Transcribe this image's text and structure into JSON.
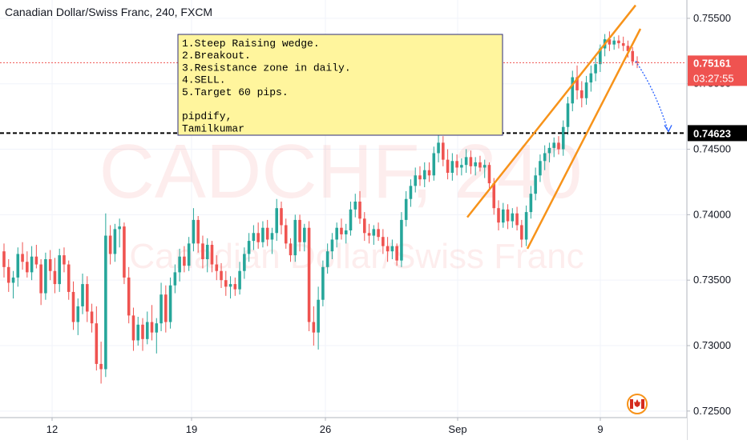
{
  "header": {
    "title": "Canadian Dollar/Swiss Franc, 240, FXCM"
  },
  "watermark": {
    "symbol": "CADCHF, 240",
    "name": "Canadian Dollar/Swiss Franc"
  },
  "annotation": {
    "lines": [
      "1.Steep Raising wedge.",
      "2.Breakout.",
      "3.Resistance zone in daily.",
      "4.SELL.",
      "5.Target 60 pips.",
      "",
      "pipdify,",
      "Tamilkumar"
    ]
  },
  "colors": {
    "up": "#26a69a",
    "down": "#ef5350",
    "wedge": "#f7931a",
    "annotation_bg": "#fff59d",
    "annotation_border": "#2d2d7a",
    "price_badge": "#ef5350",
    "level_badge": "#000000",
    "projection": "#2962ff"
  },
  "chart_data": {
    "type": "candlestick",
    "symbol": "CADCHF",
    "timeframe": "240",
    "ylim": [
      0.7245,
      0.7564
    ],
    "y_ticks": [
      "0.75500",
      "0.75000",
      "0.74500",
      "0.74000",
      "0.73500",
      "0.73000",
      "0.72500"
    ],
    "x_ticks": [
      "12",
      "19",
      "26",
      "Sep",
      "9"
    ],
    "current_price": "0.75161",
    "countdown": "03:27:55",
    "target_level": "0.74623",
    "levels": {
      "current_price": 0.75161,
      "target_level": 0.74623
    },
    "candles_ohlc": [
      [
        0.7372,
        0.7378,
        0.7352,
        0.736
      ],
      [
        0.736,
        0.7366,
        0.7341,
        0.7348
      ],
      [
        0.7348,
        0.7357,
        0.7336,
        0.7352
      ],
      [
        0.7352,
        0.7375,
        0.7345,
        0.737
      ],
      [
        0.737,
        0.7379,
        0.7358,
        0.7364
      ],
      [
        0.7364,
        0.7372,
        0.7352,
        0.7356
      ],
      [
        0.7356,
        0.7376,
        0.735,
        0.7368
      ],
      [
        0.7368,
        0.7377,
        0.7359,
        0.7362
      ],
      [
        0.7362,
        0.7366,
        0.7331,
        0.734
      ],
      [
        0.734,
        0.7371,
        0.7335,
        0.7366
      ],
      [
        0.7366,
        0.7373,
        0.735,
        0.7357
      ],
      [
        0.7357,
        0.7367,
        0.734,
        0.7347
      ],
      [
        0.7347,
        0.7374,
        0.7341,
        0.7369
      ],
      [
        0.7369,
        0.7375,
        0.7356,
        0.7362
      ],
      [
        0.7362,
        0.7365,
        0.7335,
        0.7341
      ],
      [
        0.7341,
        0.7349,
        0.7312,
        0.7318
      ],
      [
        0.7318,
        0.7336,
        0.7308,
        0.733
      ],
      [
        0.733,
        0.7355,
        0.7324,
        0.7347
      ],
      [
        0.7347,
        0.7353,
        0.7318,
        0.7326
      ],
      [
        0.7326,
        0.7332,
        0.731,
        0.7317
      ],
      [
        0.7317,
        0.733,
        0.7281,
        0.7286
      ],
      [
        0.7286,
        0.7303,
        0.7271,
        0.7282
      ],
      [
        0.7282,
        0.7401,
        0.7276,
        0.7384
      ],
      [
        0.7384,
        0.7392,
        0.7362,
        0.737
      ],
      [
        0.737,
        0.7393,
        0.7364,
        0.7389
      ],
      [
        0.7389,
        0.7397,
        0.7375,
        0.7391
      ],
      [
        0.7391,
        0.7394,
        0.7347,
        0.7352
      ],
      [
        0.7352,
        0.736,
        0.7317,
        0.7323
      ],
      [
        0.7323,
        0.7329,
        0.7296,
        0.7304
      ],
      [
        0.7304,
        0.7322,
        0.73,
        0.7316
      ],
      [
        0.7316,
        0.7321,
        0.7296,
        0.7305
      ],
      [
        0.7305,
        0.7326,
        0.7301,
        0.7318
      ],
      [
        0.7318,
        0.7331,
        0.7304,
        0.731
      ],
      [
        0.731,
        0.7321,
        0.7294,
        0.7317
      ],
      [
        0.7317,
        0.7348,
        0.7311,
        0.7339
      ],
      [
        0.7339,
        0.7346,
        0.731,
        0.7318
      ],
      [
        0.7318,
        0.7352,
        0.7313,
        0.7346
      ],
      [
        0.7346,
        0.7362,
        0.734,
        0.7356
      ],
      [
        0.7356,
        0.7374,
        0.7349,
        0.7368
      ],
      [
        0.7368,
        0.7376,
        0.7356,
        0.7361
      ],
      [
        0.7361,
        0.7383,
        0.7357,
        0.7378
      ],
      [
        0.7378,
        0.7405,
        0.7372,
        0.7396
      ],
      [
        0.7396,
        0.7399,
        0.7371,
        0.7378
      ],
      [
        0.7378,
        0.7384,
        0.7359,
        0.7366
      ],
      [
        0.7366,
        0.7382,
        0.7356,
        0.7377
      ],
      [
        0.7377,
        0.738,
        0.7356,
        0.7362
      ],
      [
        0.7362,
        0.7369,
        0.735,
        0.7357
      ],
      [
        0.7357,
        0.7363,
        0.7344,
        0.735
      ],
      [
        0.735,
        0.7357,
        0.7338,
        0.7345
      ],
      [
        0.7345,
        0.7353,
        0.7336,
        0.7347
      ],
      [
        0.7347,
        0.7352,
        0.7338,
        0.7343
      ],
      [
        0.7343,
        0.7364,
        0.7339,
        0.7357
      ],
      [
        0.7357,
        0.7375,
        0.7351,
        0.737
      ],
      [
        0.737,
        0.7386,
        0.7364,
        0.738
      ],
      [
        0.738,
        0.7392,
        0.7373,
        0.7386
      ],
      [
        0.7386,
        0.7394,
        0.7374,
        0.7379
      ],
      [
        0.7379,
        0.7395,
        0.7375,
        0.739
      ],
      [
        0.739,
        0.7396,
        0.7376,
        0.7381
      ],
      [
        0.7381,
        0.739,
        0.737,
        0.7386
      ],
      [
        0.7386,
        0.7412,
        0.738,
        0.7405
      ],
      [
        0.7405,
        0.741,
        0.7385,
        0.7392
      ],
      [
        0.7392,
        0.7397,
        0.7374,
        0.7378
      ],
      [
        0.7378,
        0.7382,
        0.7364,
        0.7369
      ],
      [
        0.7369,
        0.74,
        0.7364,
        0.7396
      ],
      [
        0.7396,
        0.74,
        0.7372,
        0.7379
      ],
      [
        0.7379,
        0.7393,
        0.7372,
        0.739
      ],
      [
        0.739,
        0.7395,
        0.7311,
        0.7318
      ],
      [
        0.7318,
        0.733,
        0.73,
        0.731
      ],
      [
        0.731,
        0.7345,
        0.7297,
        0.7335
      ],
      [
        0.7335,
        0.7365,
        0.733,
        0.736
      ],
      [
        0.736,
        0.7378,
        0.7355,
        0.7372
      ],
      [
        0.7372,
        0.7386,
        0.7366,
        0.7381
      ],
      [
        0.7381,
        0.7394,
        0.7375,
        0.739
      ],
      [
        0.739,
        0.7397,
        0.7381,
        0.7385
      ],
      [
        0.7385,
        0.7393,
        0.7378,
        0.7388
      ],
      [
        0.7388,
        0.741,
        0.7384,
        0.7404
      ],
      [
        0.7404,
        0.7416,
        0.7398,
        0.741
      ],
      [
        0.741,
        0.7418,
        0.7393,
        0.7397
      ],
      [
        0.7397,
        0.7402,
        0.738,
        0.7386
      ],
      [
        0.7386,
        0.7393,
        0.7378,
        0.7384
      ],
      [
        0.7384,
        0.7392,
        0.7377,
        0.7389
      ],
      [
        0.7389,
        0.7394,
        0.738,
        0.7383
      ],
      [
        0.7383,
        0.7389,
        0.737,
        0.7376
      ],
      [
        0.7376,
        0.7383,
        0.7364,
        0.7372
      ],
      [
        0.7372,
        0.7381,
        0.7366,
        0.7376
      ],
      [
        0.7376,
        0.7378,
        0.7361,
        0.7365
      ],
      [
        0.7365,
        0.7402,
        0.736,
        0.7396
      ],
      [
        0.7396,
        0.7418,
        0.7391,
        0.7412
      ],
      [
        0.7412,
        0.7427,
        0.7406,
        0.7422
      ],
      [
        0.7422,
        0.7436,
        0.7417,
        0.743
      ],
      [
        0.743,
        0.7437,
        0.7422,
        0.7427
      ],
      [
        0.7427,
        0.744,
        0.7421,
        0.7434
      ],
      [
        0.7434,
        0.744,
        0.7425,
        0.743
      ],
      [
        0.743,
        0.7452,
        0.7426,
        0.7447
      ],
      [
        0.7447,
        0.7462,
        0.744,
        0.7455
      ],
      [
        0.7455,
        0.746,
        0.7437,
        0.7442
      ],
      [
        0.7442,
        0.745,
        0.7427,
        0.7432
      ],
      [
        0.7432,
        0.7447,
        0.7426,
        0.7441
      ],
      [
        0.7441,
        0.7446,
        0.743,
        0.7436
      ],
      [
        0.7436,
        0.7443,
        0.743,
        0.7438
      ],
      [
        0.7438,
        0.745,
        0.7432,
        0.7444
      ],
      [
        0.7444,
        0.7449,
        0.7431,
        0.7437
      ],
      [
        0.7437,
        0.7444,
        0.743,
        0.744
      ],
      [
        0.744,
        0.7445,
        0.7433,
        0.7436
      ],
      [
        0.7436,
        0.7442,
        0.7428,
        0.7438
      ],
      [
        0.7438,
        0.744,
        0.742,
        0.7424
      ],
      [
        0.7424,
        0.7428,
        0.74,
        0.7405
      ],
      [
        0.7405,
        0.7411,
        0.7388,
        0.7394
      ],
      [
        0.7394,
        0.7409,
        0.739,
        0.7404
      ],
      [
        0.7404,
        0.7408,
        0.7389,
        0.7395
      ],
      [
        0.7395,
        0.7405,
        0.739,
        0.7401
      ],
      [
        0.7401,
        0.7406,
        0.7388,
        0.7392
      ],
      [
        0.7392,
        0.7396,
        0.7375,
        0.7381
      ],
      [
        0.7381,
        0.7407,
        0.7376,
        0.7402
      ],
      [
        0.7402,
        0.7422,
        0.7397,
        0.7416
      ],
      [
        0.7416,
        0.7436,
        0.7411,
        0.743
      ],
      [
        0.743,
        0.7446,
        0.7425,
        0.7441
      ],
      [
        0.7441,
        0.7453,
        0.7434,
        0.7447
      ],
      [
        0.7447,
        0.7455,
        0.744,
        0.7451
      ],
      [
        0.7451,
        0.7459,
        0.7444,
        0.7455
      ],
      [
        0.7455,
        0.746,
        0.7446,
        0.745
      ],
      [
        0.745,
        0.7472,
        0.7445,
        0.7467
      ],
      [
        0.7467,
        0.749,
        0.7461,
        0.7485
      ],
      [
        0.7485,
        0.751,
        0.7479,
        0.7505
      ],
      [
        0.7505,
        0.7514,
        0.7488,
        0.7495
      ],
      [
        0.7495,
        0.7502,
        0.7482,
        0.7489
      ],
      [
        0.7489,
        0.7506,
        0.7484,
        0.7501
      ],
      [
        0.7501,
        0.7514,
        0.7494,
        0.7508
      ],
      [
        0.7508,
        0.752,
        0.7502,
        0.7515
      ],
      [
        0.7515,
        0.753,
        0.7509,
        0.7527
      ],
      [
        0.7527,
        0.7538,
        0.7521,
        0.7534
      ],
      [
        0.7534,
        0.754,
        0.7525,
        0.753
      ],
      [
        0.753,
        0.7536,
        0.7526,
        0.7533
      ],
      [
        0.7533,
        0.7537,
        0.7527,
        0.7531
      ],
      [
        0.7531,
        0.7536,
        0.7525,
        0.7529
      ],
      [
        0.7529,
        0.7533,
        0.752,
        0.7525
      ],
      [
        0.7525,
        0.7528,
        0.7514,
        0.7517
      ],
      [
        0.7517,
        0.7521,
        0.7512,
        0.7516
      ]
    ]
  }
}
